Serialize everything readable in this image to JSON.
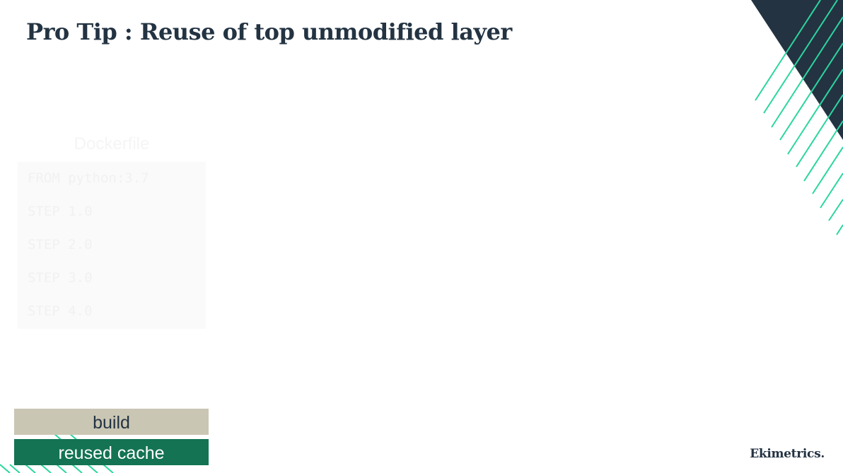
{
  "slide": {
    "title": "Pro Tip : Reuse of top unmodified layer"
  },
  "dockerfile": {
    "caption": "Dockerfile",
    "lines": [
      "FROM python:3.7",
      "STEP 1.0",
      "STEP 2.0",
      "STEP 3.0",
      "STEP 4.0"
    ]
  },
  "legend": {
    "build_label": "build",
    "cache_label": "reused cache"
  },
  "brand": {
    "logo_text": "Ekimetrics."
  },
  "colors": {
    "navy": "#233342",
    "accent_green": "#2bd69f",
    "build_beige": "#cac6b4",
    "cache_green": "#137352"
  }
}
